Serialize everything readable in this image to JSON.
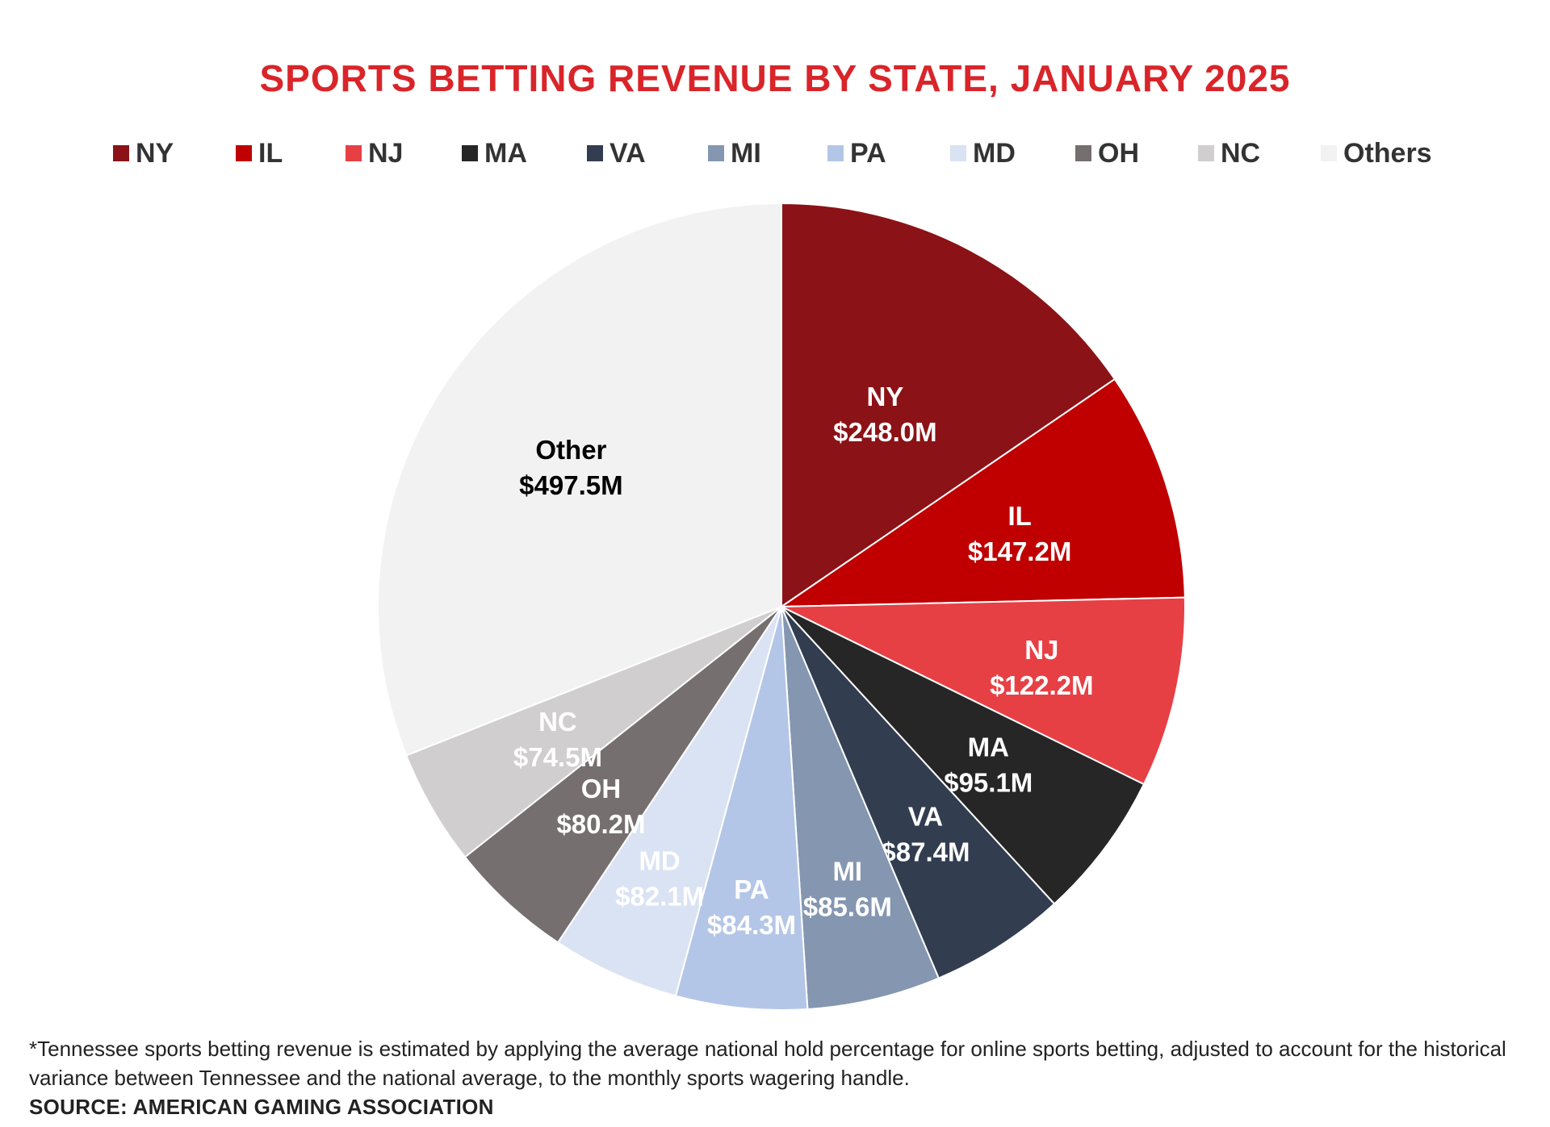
{
  "footnote": "*Tennessee sports betting revenue is estimated by applying the average national hold percentage for online sports betting, adjusted to account for the historical variance between Tennessee and the national average, to the monthly sports wagering handle.",
  "source": "SOURCE: AMERICAN GAMING ASSOCIATION",
  "colors": {
    "title": "#d9252a"
  },
  "chart_data": {
    "type": "pie",
    "title": "SPORTS BETTING REVENUE BY STATE, JANUARY 2025",
    "legend_position": "top",
    "legend": [
      "NY",
      "IL",
      "NJ",
      "MA",
      "VA",
      "MI",
      "PA",
      "MD",
      "OH",
      "NC",
      "Others"
    ],
    "start": "12 o'clock, clockwise",
    "slices": [
      {
        "label": "NY",
        "value": 248.0,
        "display": "$248.0M",
        "color": "#8b1216",
        "text_color": "#ffffff"
      },
      {
        "label": "IL",
        "value": 147.2,
        "display": "$147.2M",
        "color": "#c00000",
        "text_color": "#ffffff"
      },
      {
        "label": "NJ",
        "value": 122.2,
        "display": "$122.2M",
        "color": "#e64045",
        "text_color": "#ffffff"
      },
      {
        "label": "MA",
        "value": 95.1,
        "display": "$95.1M",
        "color": "#262626",
        "text_color": "#ffffff"
      },
      {
        "label": "VA",
        "value": 87.4,
        "display": "$87.4M",
        "color": "#323d50",
        "text_color": "#ffffff"
      },
      {
        "label": "MI",
        "value": 85.6,
        "display": "$85.6M",
        "color": "#8496b0",
        "text_color": "#ffffff"
      },
      {
        "label": "PA",
        "value": 84.3,
        "display": "$84.3M",
        "color": "#b4c6e7",
        "text_color": "#ffffff"
      },
      {
        "label": "MD",
        "value": 82.1,
        "display": "$82.1M",
        "color": "#dae3f3",
        "text_color": "#ffffff"
      },
      {
        "label": "OH",
        "value": 80.2,
        "display": "$80.2M",
        "color": "#766f6f",
        "text_color": "#ffffff"
      },
      {
        "label": "NC",
        "value": 74.5,
        "display": "$74.5M",
        "color": "#d0cece",
        "text_color": "#ffffff"
      },
      {
        "label": "Other",
        "value": 497.5,
        "display": "$497.5M",
        "color": "#f2f2f2",
        "text_color": "#000000"
      }
    ]
  }
}
